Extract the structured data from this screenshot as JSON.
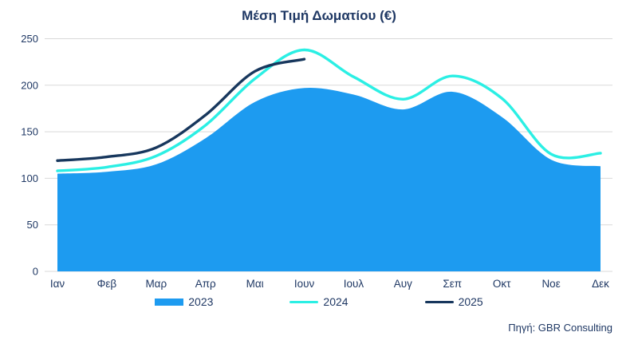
{
  "title": "Μέση Τιμή Δωματίου (€)",
  "source": "Πηγή: GBR Consulting",
  "colors": {
    "text": "#1F3864",
    "grid": "#D9D9D9",
    "background": "#FFFFFF",
    "area_2023": "#1D9BF0",
    "line_2024": "#2BEFE4",
    "line_2025": "#17375D"
  },
  "chart_data": {
    "type": "area",
    "title": "Μέση Τιμή Δωματίου (€)",
    "categories": [
      "Ιαν",
      "Φεβ",
      "Μαρ",
      "Απρ",
      "Μαι",
      "Ιουν",
      "Ιουλ",
      "Αυγ",
      "Σεπ",
      "Οκτ",
      "Νοε",
      "Δεκ"
    ],
    "series": [
      {
        "name": "2023",
        "style": "area",
        "color": "#1D9BF0",
        "values": [
          105,
          107,
          115,
          143,
          182,
          197,
          190,
          174,
          193,
          166,
          120,
          113
        ]
      },
      {
        "name": "2024",
        "style": "line",
        "color": "#2BEFE4",
        "values": [
          108,
          112,
          124,
          157,
          207,
          238,
          209,
          185,
          210,
          186,
          126,
          127
        ]
      },
      {
        "name": "2025",
        "style": "line",
        "color": "#17375D",
        "values": [
          119,
          123,
          133,
          168,
          215,
          228
        ]
      }
    ],
    "xlabel": "",
    "ylabel": "",
    "ylim": [
      0,
      250
    ],
    "yticks": [
      0,
      50,
      100,
      150,
      200,
      250
    ],
    "grid": true,
    "legend_position": "bottom"
  }
}
